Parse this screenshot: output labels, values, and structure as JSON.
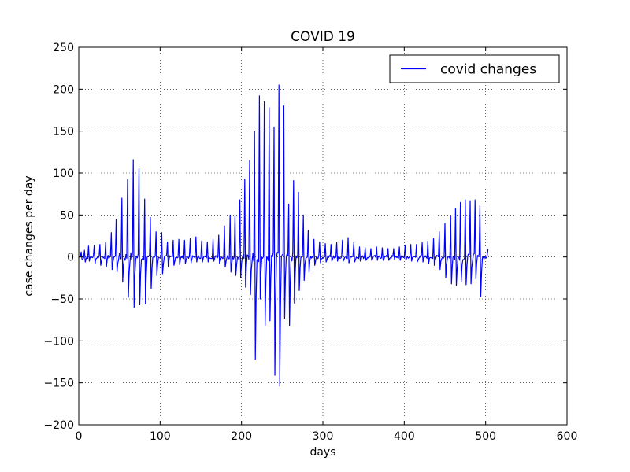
{
  "chart_data": {
    "type": "line",
    "title": "COVID 19",
    "xlabel": "days",
    "ylabel": "case changes per day",
    "xlim": [
      0,
      600
    ],
    "ylim": [
      -200,
      250
    ],
    "x_ticks": [
      0,
      100,
      200,
      300,
      400,
      500,
      600
    ],
    "y_ticks": [
      -200,
      -150,
      -100,
      -50,
      0,
      50,
      100,
      150,
      200,
      250
    ],
    "grid": true,
    "legend": {
      "position": "top-right"
    },
    "series": [
      {
        "name": "covid changes",
        "color": "#0000ff",
        "peaks": [
          [
            3,
            6,
            -3
          ],
          [
            7,
            8,
            -6
          ],
          [
            12,
            13,
            -5
          ],
          [
            19,
            14,
            -8
          ],
          [
            26,
            15,
            -10
          ],
          [
            33,
            17,
            -12
          ],
          [
            40,
            29,
            -15
          ],
          [
            46,
            45,
            -18
          ],
          [
            53,
            70,
            -30
          ],
          [
            60,
            92,
            -48
          ],
          [
            67,
            116,
            -60
          ],
          [
            74,
            105,
            -57
          ],
          [
            81,
            69,
            -56
          ],
          [
            88,
            47,
            -38
          ],
          [
            95,
            30,
            -22
          ],
          [
            102,
            29,
            -20
          ],
          [
            109,
            18,
            -12
          ],
          [
            116,
            20,
            -10
          ],
          [
            123,
            21,
            -9
          ],
          [
            130,
            20,
            -8
          ],
          [
            137,
            22,
            -7
          ],
          [
            144,
            24,
            -6
          ],
          [
            151,
            19,
            -6
          ],
          [
            158,
            18,
            -6
          ],
          [
            165,
            21,
            -5
          ],
          [
            172,
            26,
            -8
          ],
          [
            179,
            37,
            -12
          ],
          [
            186,
            50,
            -18
          ],
          [
            192,
            49,
            -22
          ],
          [
            198,
            68,
            -25
          ],
          [
            204,
            93,
            -36
          ],
          [
            210,
            115,
            -45
          ],
          [
            216,
            150,
            -122
          ],
          [
            222,
            192,
            -50
          ],
          [
            228,
            185,
            -82
          ],
          [
            234,
            178,
            -76
          ],
          [
            240,
            155,
            -141
          ],
          [
            246,
            205,
            -154
          ],
          [
            252,
            180,
            -73
          ],
          [
            258,
            63,
            -82
          ],
          [
            264,
            91,
            -55
          ],
          [
            270,
            77,
            -40
          ],
          [
            276,
            50,
            -28
          ],
          [
            282,
            32,
            -18
          ],
          [
            289,
            21,
            -10
          ],
          [
            296,
            18,
            -7
          ],
          [
            303,
            16,
            -6
          ],
          [
            310,
            15,
            -5
          ],
          [
            317,
            17,
            -5
          ],
          [
            324,
            20,
            -5
          ],
          [
            331,
            23,
            -7
          ],
          [
            338,
            17,
            -6
          ],
          [
            345,
            12,
            -5
          ],
          [
            352,
            11,
            -4
          ],
          [
            359,
            10,
            -4
          ],
          [
            366,
            12,
            -4
          ],
          [
            373,
            11,
            -4
          ],
          [
            380,
            10,
            -4
          ],
          [
            387,
            10,
            -3
          ],
          [
            394,
            12,
            -4
          ],
          [
            401,
            14,
            -4
          ],
          [
            408,
            15,
            -5
          ],
          [
            415,
            15,
            -6
          ],
          [
            422,
            17,
            -6
          ],
          [
            429,
            19,
            -8
          ],
          [
            436,
            22,
            -10
          ],
          [
            443,
            30,
            -15
          ],
          [
            450,
            40,
            -25
          ],
          [
            457,
            49,
            -32
          ],
          [
            463,
            58,
            -34
          ],
          [
            469,
            65,
            -30
          ],
          [
            475,
            68,
            -33
          ],
          [
            481,
            67,
            -32
          ],
          [
            487,
            68,
            -26
          ],
          [
            493,
            62,
            -47
          ]
        ],
        "x_start": 0,
        "x_end": 503,
        "y_end": 10
      }
    ]
  }
}
